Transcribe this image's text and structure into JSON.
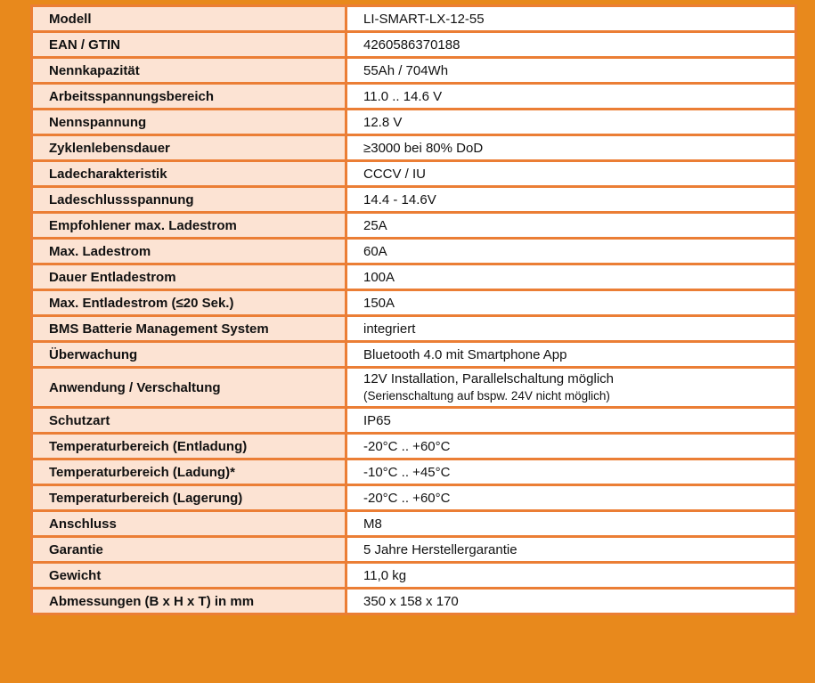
{
  "colors": {
    "background": "#E8891C",
    "border": "#EB7E35",
    "label_cell": "#FCE3D3",
    "value_cell": "#FFFFFF"
  },
  "rows": [
    {
      "label": "Modell",
      "value": "LI-SMART-LX-12-55"
    },
    {
      "label": "EAN / GTIN",
      "value": "4260586370188"
    },
    {
      "label": "Nennkapazität",
      "value": "55Ah / 704Wh"
    },
    {
      "label": "Arbeitsspannungsbereich",
      "value": "11.0 .. 14.6 V"
    },
    {
      "label": "Nennspannung",
      "value": "12.8 V"
    },
    {
      "label": "Zyklenlebensdauer",
      "value": "≥3000 bei 80% DoD"
    },
    {
      "label": "Ladecharakteristik",
      "value": "CCCV / IU"
    },
    {
      "label": "Ladeschlussspannung",
      "value": "14.4 - 14.6V"
    },
    {
      "label": "Empfohlener max. Ladestrom",
      "value": "25A"
    },
    {
      "label": "Max. Ladestrom",
      "value": "60A"
    },
    {
      "label": "Dauer Entladestrom",
      "value": "100A"
    },
    {
      "label": "Max. Entladestrom (≤20 Sek.)",
      "value": "150A"
    },
    {
      "label": "BMS Batterie Management System",
      "value": "integriert"
    },
    {
      "label": "Überwachung",
      "value": "Bluetooth 4.0 mit Smartphone App"
    },
    {
      "label": "Anwendung / Verschaltung",
      "value": "12V Installation, Parallelschaltung möglich",
      "note": "(Serienschaltung auf bspw. 24V nicht möglich)"
    },
    {
      "label": "Schutzart",
      "value": "IP65"
    },
    {
      "label": "Temperaturbereich (Entladung)",
      "value": "-20°C .. +60°C"
    },
    {
      "label": "Temperaturbereich (Ladung)*",
      "value": "-10°C .. +45°C"
    },
    {
      "label": "Temperaturbereich (Lagerung)",
      "value": "-20°C .. +60°C"
    },
    {
      "label": "Anschluss",
      "value": "M8"
    },
    {
      "label": "Garantie",
      "value": "5 Jahre Herstellergarantie"
    },
    {
      "label": "Gewicht",
      "value": "11,0 kg"
    },
    {
      "label": "Abmessungen (B x H x T) in mm",
      "value": "350 x 158 x 170"
    }
  ]
}
